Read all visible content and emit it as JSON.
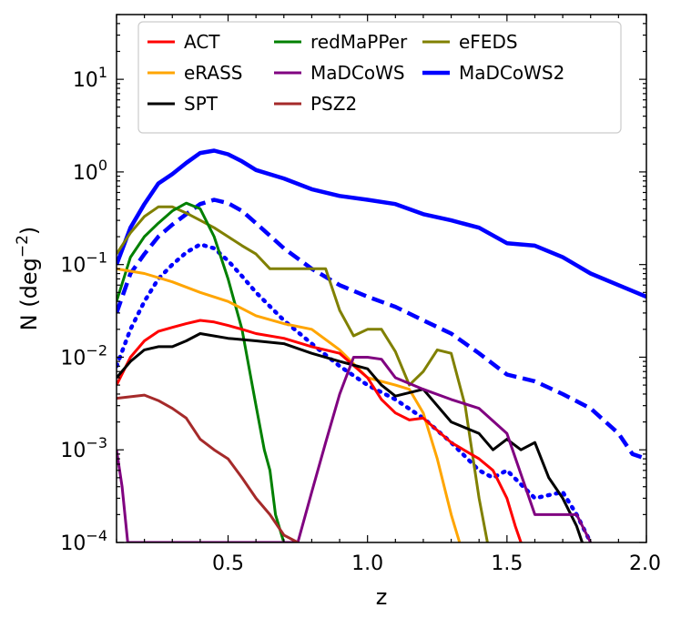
{
  "chart_data": {
    "type": "line",
    "xlabel": "z",
    "ylabel": "N (deg",
    "ylabel_sup": "−2",
    "ylabel_close": ")",
    "xlim": [
      0.1,
      2.0
    ],
    "ylim": [
      0.0001,
      50
    ],
    "yscale": "log",
    "grid": false,
    "legend_position": "top",
    "x_ticks": [
      {
        "value": 0.5,
        "label": "0.5"
      },
      {
        "value": 1.0,
        "label": "1.0"
      },
      {
        "value": 1.5,
        "label": "1.5"
      },
      {
        "value": 2.0,
        "label": "2.0"
      }
    ],
    "y_ticks": [
      {
        "value": 0.0001,
        "base": "10",
        "exp": "−4"
      },
      {
        "value": 0.001,
        "base": "10",
        "exp": "−3"
      },
      {
        "value": 0.01,
        "base": "10",
        "exp": "−2"
      },
      {
        "value": 0.1,
        "base": "10",
        "exp": "−1"
      },
      {
        "value": 1,
        "base": "10",
        "exp": "0"
      },
      {
        "value": 10,
        "base": "10",
        "exp": "1"
      }
    ],
    "legend": [
      {
        "name": "ACT",
        "color": "#ff0000",
        "width": 3,
        "dash": "",
        "col": 0,
        "row": 0
      },
      {
        "name": "eRASS",
        "color": "#ffa500",
        "width": 3,
        "dash": "",
        "col": 0,
        "row": 1
      },
      {
        "name": "SPT",
        "color": "#000000",
        "width": 3,
        "dash": "",
        "col": 0,
        "row": 2
      },
      {
        "name": "redMaPPer",
        "color": "#008000",
        "width": 3,
        "dash": "",
        "col": 1,
        "row": 0
      },
      {
        "name": "MaDCoWS",
        "color": "#800080",
        "width": 3,
        "dash": "",
        "col": 1,
        "row": 1
      },
      {
        "name": "PSZ2",
        "color": "#a52a2a",
        "width": 3,
        "dash": "",
        "col": 1,
        "row": 2
      },
      {
        "name": "eFEDS",
        "color": "#808000",
        "width": 3,
        "dash": "",
        "col": 2,
        "row": 0
      },
      {
        "name": "MaDCoWS2",
        "color": "#0000ff",
        "width": 4.5,
        "dash": "",
        "col": 2,
        "row": 1
      }
    ],
    "series": [
      {
        "id": "madcows2-dashed",
        "color": "#0000ff",
        "width": 4.5,
        "dash": "14 7",
        "x": [
          0.1,
          0.15,
          0.2,
          0.25,
          0.3,
          0.35,
          0.4,
          0.45,
          0.5,
          0.55,
          0.6,
          0.7,
          0.8,
          0.9,
          1.0,
          1.1,
          1.2,
          1.3,
          1.4,
          1.5,
          1.6,
          1.7,
          1.8,
          1.9,
          1.95,
          2.0
        ],
        "y": [
          0.03,
          0.08,
          0.13,
          0.2,
          0.27,
          0.35,
          0.45,
          0.5,
          0.46,
          0.38,
          0.28,
          0.15,
          0.09,
          0.06,
          0.045,
          0.035,
          0.025,
          0.018,
          0.011,
          0.0065,
          0.0055,
          0.004,
          0.0028,
          0.0015,
          0.0009,
          0.0008
        ]
      },
      {
        "id": "madcows2-dotted",
        "color": "#0000ff",
        "width": 4.5,
        "dash": "2 7",
        "x": [
          0.1,
          0.15,
          0.2,
          0.25,
          0.3,
          0.35,
          0.4,
          0.45,
          0.5,
          0.55,
          0.6,
          0.7,
          0.8,
          0.9,
          1.0,
          1.1,
          1.2,
          1.3,
          1.4,
          1.45,
          1.5,
          1.6,
          1.7,
          1.75,
          1.8
        ],
        "y": [
          0.008,
          0.02,
          0.04,
          0.07,
          0.1,
          0.135,
          0.165,
          0.15,
          0.11,
          0.075,
          0.05,
          0.025,
          0.014,
          0.008,
          0.005,
          0.0035,
          0.0022,
          0.0012,
          0.0006,
          0.0005,
          0.0006,
          0.0003,
          0.00035,
          0.0002,
          0.0001
        ]
      },
      {
        "id": "madcows2",
        "color": "#0000ff",
        "width": 4.5,
        "dash": "",
        "x": [
          0.1,
          0.15,
          0.2,
          0.25,
          0.3,
          0.35,
          0.4,
          0.45,
          0.5,
          0.55,
          0.6,
          0.7,
          0.8,
          0.9,
          1.0,
          1.1,
          1.2,
          1.3,
          1.4,
          1.5,
          1.6,
          1.7,
          1.8,
          1.9,
          2.0
        ],
        "y": [
          0.1,
          0.25,
          0.45,
          0.75,
          0.95,
          1.25,
          1.6,
          1.7,
          1.55,
          1.3,
          1.05,
          0.85,
          0.65,
          0.55,
          0.5,
          0.45,
          0.35,
          0.3,
          0.25,
          0.17,
          0.16,
          0.12,
          0.08,
          0.06,
          0.045
        ]
      },
      {
        "id": "efeds",
        "color": "#808000",
        "width": 3,
        "dash": "",
        "x": [
          0.1,
          0.15,
          0.2,
          0.25,
          0.3,
          0.35,
          0.4,
          0.45,
          0.5,
          0.55,
          0.6,
          0.65,
          0.7,
          0.75,
          0.8,
          0.85,
          0.9,
          0.95,
          1.0,
          1.05,
          1.1,
          1.15,
          1.2,
          1.25,
          1.3,
          1.35,
          1.4,
          1.43
        ],
        "y": [
          0.13,
          0.22,
          0.33,
          0.42,
          0.42,
          0.36,
          0.3,
          0.25,
          0.2,
          0.16,
          0.13,
          0.09,
          0.09,
          0.09,
          0.09,
          0.09,
          0.032,
          0.017,
          0.02,
          0.02,
          0.0115,
          0.005,
          0.007,
          0.012,
          0.011,
          0.003,
          0.0003,
          0.0001
        ]
      },
      {
        "id": "redmapper",
        "color": "#008000",
        "width": 3,
        "dash": "",
        "x": [
          0.1,
          0.15,
          0.2,
          0.25,
          0.3,
          0.35,
          0.4,
          0.45,
          0.5,
          0.55,
          0.6,
          0.63,
          0.65,
          0.67,
          0.7
        ],
        "y": [
          0.04,
          0.12,
          0.2,
          0.28,
          0.38,
          0.46,
          0.4,
          0.2,
          0.07,
          0.02,
          0.003,
          0.001,
          0.0006,
          0.0002,
          0.0001
        ]
      },
      {
        "id": "erass",
        "color": "#ffa500",
        "width": 3,
        "dash": "",
        "x": [
          0.1,
          0.2,
          0.3,
          0.4,
          0.5,
          0.6,
          0.7,
          0.8,
          0.9,
          1.0,
          1.1,
          1.15,
          1.2,
          1.25,
          1.3,
          1.33
        ],
        "y": [
          0.09,
          0.08,
          0.065,
          0.05,
          0.04,
          0.028,
          0.023,
          0.02,
          0.012,
          0.006,
          0.005,
          0.0045,
          0.0025,
          0.0008,
          0.0002,
          0.0001
        ]
      },
      {
        "id": "act",
        "color": "#ff0000",
        "width": 3,
        "dash": "",
        "x": [
          0.1,
          0.15,
          0.2,
          0.25,
          0.3,
          0.35,
          0.4,
          0.45,
          0.5,
          0.55,
          0.6,
          0.7,
          0.8,
          0.9,
          1.0,
          1.05,
          1.1,
          1.15,
          1.2,
          1.3,
          1.4,
          1.45,
          1.5,
          1.53,
          1.55
        ],
        "y": [
          0.005,
          0.01,
          0.015,
          0.019,
          0.021,
          0.023,
          0.025,
          0.024,
          0.022,
          0.02,
          0.018,
          0.016,
          0.013,
          0.011,
          0.006,
          0.0035,
          0.0025,
          0.0021,
          0.0022,
          0.0012,
          0.0008,
          0.0006,
          0.0003,
          0.00015,
          0.0001
        ]
      },
      {
        "id": "spt",
        "color": "#000000",
        "width": 3,
        "dash": "",
        "x": [
          0.1,
          0.15,
          0.2,
          0.25,
          0.3,
          0.35,
          0.4,
          0.5,
          0.6,
          0.7,
          0.8,
          0.9,
          1.0,
          1.05,
          1.1,
          1.2,
          1.3,
          1.4,
          1.45,
          1.5,
          1.55,
          1.6,
          1.65,
          1.7,
          1.75,
          1.77
        ],
        "y": [
          0.006,
          0.009,
          0.012,
          0.013,
          0.013,
          0.015,
          0.018,
          0.016,
          0.015,
          0.014,
          0.011,
          0.009,
          0.0075,
          0.005,
          0.0038,
          0.0045,
          0.002,
          0.0015,
          0.001,
          0.0013,
          0.001,
          0.0012,
          0.0005,
          0.0003,
          0.00015,
          0.0001
        ]
      },
      {
        "id": "madcows",
        "color": "#800080",
        "width": 3,
        "dash": "",
        "x": [
          0.1,
          0.12,
          0.14,
          0.75,
          0.8,
          0.85,
          0.9,
          0.95,
          1.0,
          1.05,
          1.1,
          1.2,
          1.3,
          1.4,
          1.5,
          1.6,
          1.7,
          1.75,
          1.8
        ],
        "y": [
          0.001,
          0.0004,
          0.0001,
          0.0001,
          0.00035,
          0.0012,
          0.004,
          0.01,
          0.01,
          0.0095,
          0.006,
          0.0045,
          0.0035,
          0.0028,
          0.0015,
          0.0002,
          0.0002,
          0.0002,
          0.0001
        ]
      },
      {
        "id": "psz2",
        "color": "#a52a2a",
        "width": 3,
        "dash": "",
        "x": [
          0.1,
          0.2,
          0.25,
          0.3,
          0.35,
          0.4,
          0.45,
          0.5,
          0.55,
          0.6,
          0.65,
          0.7,
          0.75
        ],
        "y": [
          0.0036,
          0.0039,
          0.0034,
          0.0028,
          0.0022,
          0.0013,
          0.001,
          0.0008,
          0.0005,
          0.0003,
          0.0002,
          0.00012,
          0.0001
        ]
      }
    ]
  }
}
